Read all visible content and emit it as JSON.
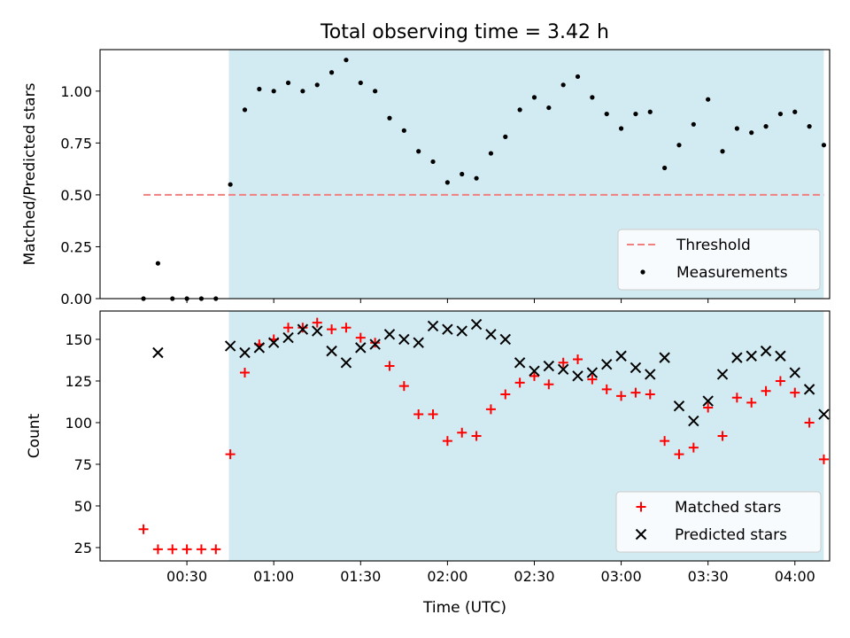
{
  "figure": {
    "title": "Total observing time = 3.42 h",
    "xlabel": "Time (UTC)"
  },
  "colors": {
    "shade": "#add8e6",
    "threshold": "#f08080",
    "matched": "#ff0000",
    "predicted": "#000000",
    "measurement": "#000000"
  },
  "chart_data": [
    {
      "type": "scatter",
      "panel": "top",
      "ylabel": "Matched/Predicted stars",
      "x_unit": "minutes after 00:00 UTC",
      "xlim": [
        0,
        252
      ],
      "ylim": [
        0,
        1.2
      ],
      "xticks": [
        30,
        60,
        90,
        120,
        150,
        180,
        210,
        240
      ],
      "xtick_labels": [],
      "yticks": [
        0,
        0.25,
        0.5,
        0.75,
        1.0
      ],
      "ytick_labels": [
        "0.00",
        "0.25",
        "0.50",
        "0.75",
        "1.00"
      ],
      "shaded_interval": [
        44.5,
        250
      ],
      "threshold": {
        "name": "Threshold",
        "y": 0.5,
        "x_range": [
          15,
          250
        ]
      },
      "series": [
        {
          "name": "Measurements",
          "x": [
            15,
            20,
            25,
            30,
            35,
            40,
            45,
            50,
            55,
            60,
            65,
            70,
            75,
            80,
            85,
            90,
            95,
            100,
            105,
            110,
            115,
            120,
            125,
            130,
            135,
            140,
            145,
            150,
            155,
            160,
            165,
            170,
            175,
            180,
            185,
            190,
            195,
            200,
            205,
            210,
            215,
            220,
            225,
            230,
            235,
            240,
            245,
            250
          ],
          "values": [
            0.0,
            0.17,
            0.0,
            0.0,
            0.0,
            0.0,
            0.55,
            0.91,
            1.01,
            1.0,
            1.04,
            1.0,
            1.03,
            1.09,
            1.15,
            1.04,
            1.0,
            0.87,
            0.81,
            0.71,
            0.66,
            0.56,
            0.6,
            0.58,
            0.7,
            0.78,
            0.91,
            0.97,
            0.92,
            1.03,
            1.07,
            0.97,
            0.89,
            0.82,
            0.89,
            0.9,
            0.63,
            0.74,
            0.84,
            0.96,
            0.71,
            0.82,
            0.8,
            0.83,
            0.89,
            0.9,
            0.83,
            0.74
          ]
        }
      ],
      "legend": {
        "position": "lower right",
        "entries": [
          "Threshold",
          "Measurements"
        ]
      }
    },
    {
      "type": "scatter",
      "panel": "bottom",
      "ylabel": "Count",
      "x_unit": "minutes after 00:00 UTC",
      "xlim": [
        0,
        252
      ],
      "ylim": [
        17,
        167
      ],
      "xticks": [
        30,
        60,
        90,
        120,
        150,
        180,
        210,
        240
      ],
      "xtick_labels": [
        "00:30",
        "01:00",
        "01:30",
        "02:00",
        "02:30",
        "03:00",
        "03:30",
        "04:00"
      ],
      "yticks": [
        25,
        50,
        75,
        100,
        125,
        150
      ],
      "ytick_labels": [
        "25",
        "50",
        "75",
        "100",
        "125",
        "150"
      ],
      "shaded_interval": [
        44.5,
        250
      ],
      "series": [
        {
          "name": "Matched stars",
          "marker": "plus",
          "x": [
            15,
            20,
            25,
            30,
            35,
            40,
            45,
            50,
            55,
            60,
            65,
            70,
            75,
            80,
            85,
            90,
            95,
            100,
            105,
            110,
            115,
            120,
            125,
            130,
            135,
            140,
            145,
            150,
            155,
            160,
            165,
            170,
            175,
            180,
            185,
            190,
            195,
            200,
            205,
            210,
            215,
            220,
            225,
            230,
            235,
            240,
            245,
            250
          ],
          "values": [
            36,
            24,
            24,
            24,
            24,
            24,
            81,
            130,
            147,
            150,
            157,
            157,
            160,
            156,
            157,
            151,
            148,
            134,
            122,
            105,
            105,
            89,
            94,
            92,
            108,
            117,
            124,
            128,
            123,
            136,
            138,
            126,
            120,
            116,
            118,
            117,
            89,
            81,
            85,
            109,
            92,
            115,
            112,
            119,
            125,
            118,
            100,
            78
          ]
        },
        {
          "name": "Predicted stars",
          "marker": "x",
          "x": [
            20,
            45,
            50,
            55,
            60,
            65,
            70,
            75,
            80,
            85,
            90,
            95,
            100,
            105,
            110,
            115,
            120,
            125,
            130,
            135,
            140,
            145,
            150,
            155,
            160,
            165,
            170,
            175,
            180,
            185,
            190,
            195,
            200,
            205,
            210,
            215,
            220,
            225,
            230,
            235,
            240,
            245,
            250
          ],
          "values": [
            142,
            146,
            142,
            145,
            148,
            151,
            156,
            155,
            143,
            136,
            145,
            147,
            153,
            150,
            148,
            158,
            156,
            155,
            159,
            153,
            150,
            136,
            131,
            134,
            132,
            128,
            130,
            135,
            140,
            133,
            129,
            139,
            110,
            101,
            113,
            129,
            139,
            140,
            143,
            140,
            130,
            120,
            105
          ]
        }
      ],
      "legend": {
        "position": "lower right",
        "entries": [
          "Matched stars",
          "Predicted stars"
        ]
      }
    }
  ]
}
